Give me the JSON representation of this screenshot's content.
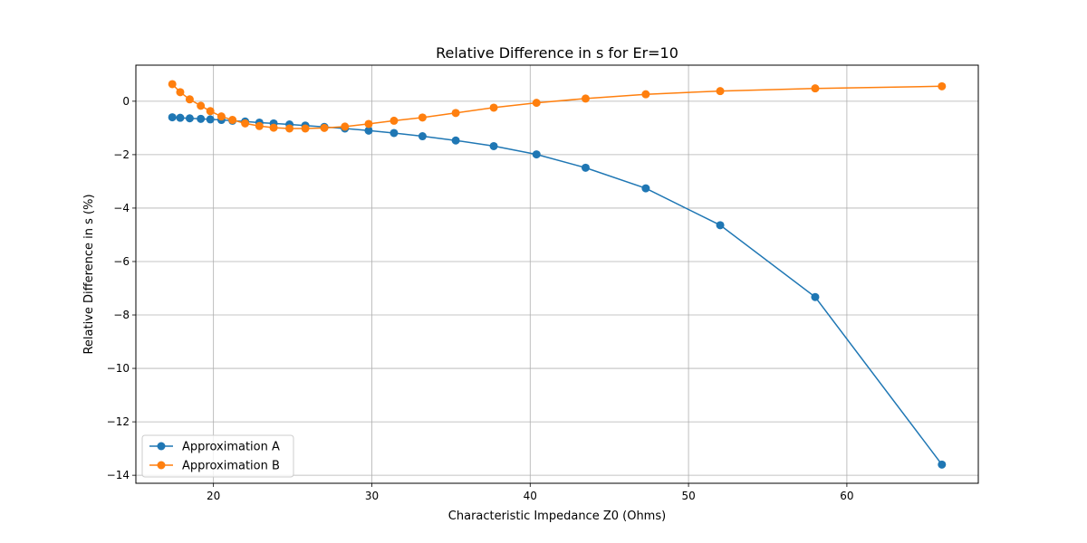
{
  "chart_data": {
    "type": "line",
    "title": "Relative Difference in s for Er=10",
    "xlabel": "Characteristic Impedance Z0 (Ohms)",
    "ylabel": "Relative Difference in s (%)",
    "xlim": [
      15.1,
      68.3
    ],
    "ylim": [
      -14.3,
      1.35
    ],
    "xticks": [
      20,
      30,
      40,
      50,
      60
    ],
    "yticks": [
      0,
      -2,
      -4,
      -6,
      -8,
      -10,
      -12,
      -14
    ],
    "grid": true,
    "legend_position": "lower-left",
    "series": [
      {
        "name": "Approximation A",
        "color": "#1f77b4",
        "x": [
          17.4,
          17.9,
          18.5,
          19.2,
          19.8,
          20.5,
          21.2,
          22.0,
          22.9,
          23.8,
          24.8,
          25.8,
          27.0,
          28.3,
          29.8,
          31.4,
          33.2,
          35.3,
          37.7,
          40.4,
          43.5,
          47.3,
          52.0,
          58.0,
          66.0
        ],
        "y": [
          -0.6,
          -0.62,
          -0.64,
          -0.66,
          -0.68,
          -0.7,
          -0.73,
          -0.76,
          -0.8,
          -0.83,
          -0.87,
          -0.91,
          -0.96,
          -1.02,
          -1.1,
          -1.19,
          -1.31,
          -1.47,
          -1.68,
          -1.99,
          -2.49,
          -3.26,
          -4.64,
          -7.33,
          -13.6
        ]
      },
      {
        "name": "Approximation B",
        "color": "#ff7f0e",
        "x": [
          17.4,
          17.9,
          18.5,
          19.2,
          19.8,
          20.5,
          21.2,
          22.0,
          22.9,
          23.8,
          24.8,
          25.8,
          27.0,
          28.3,
          29.8,
          31.4,
          33.2,
          35.3,
          37.7,
          40.4,
          43.5,
          47.3,
          52.0,
          58.0,
          66.0
        ],
        "y": [
          0.64,
          0.34,
          0.07,
          -0.17,
          -0.37,
          -0.57,
          -0.7,
          -0.83,
          -0.93,
          -0.99,
          -1.02,
          -1.02,
          -1.0,
          -0.95,
          -0.85,
          -0.73,
          -0.61,
          -0.44,
          -0.24,
          -0.06,
          0.1,
          0.26,
          0.38,
          0.48,
          0.56
        ]
      }
    ]
  }
}
